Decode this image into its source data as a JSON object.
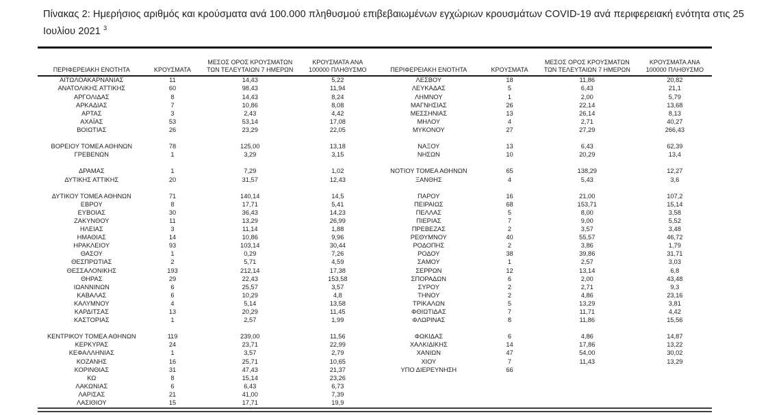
{
  "page": {
    "title": "Πίνακας 2:  Ημερήσιος αριθμός και κρούσματα ανά 100.000 πληθυσμού επιβεβαιωμένων εγχώριων κρουσμάτων COVID-19 ανά περιφερειακή ενότητα στις 25 Ιουλίου 2021",
    "title_footnote": "3"
  },
  "colors": {
    "text": "#1c1c22",
    "rule_top": "#111111",
    "rule_header": "#161616",
    "rule_bottom": "#3c3c3c",
    "background": "#ffffff"
  },
  "table": {
    "headers": [
      "ΠΕΡΙΦΕΡΕΙΑΚΗ ΕΝΟΤΗΤΑ",
      "ΚΡΟΥΣΜΑΤΑ",
      "ΜΕΣΟΣ ΟΡΟΣ ΚΡΟΥΣΜΑΤΩΝ ΤΩΝ ΤΕΛΕΥΤΑΙΩΝ 7 ΗΜΕΡΩΝ",
      "ΚΡΟΥΣΜΑΤΑ ΑΝΑ 100000 ΠΛΗΘΥΣΜΟ"
    ],
    "left_rows": [
      [
        "ΑΙΤΩΛΟΑΚΑΡΝΑΝΙΑΣ",
        "11",
        "14,43",
        "5,22"
      ],
      [
        "ΑΝΑΤΟΛΙΚΗΣ ΑΤΤΙΚΗΣ",
        "60",
        "98,43",
        "11,94"
      ],
      [
        "ΑΡΓΟΛΙΔΑΣ",
        "8",
        "14,43",
        "8,24"
      ],
      [
        "ΑΡΚΑΔΙΑΣ",
        "7",
        "10,86",
        "8,08"
      ],
      [
        "ΑΡΤΑΣ",
        "3",
        "2,43",
        "4,42"
      ],
      [
        "ΑΧΑΪΑΣ",
        "53",
        "53,14",
        "17,08"
      ],
      [
        "ΒΟΙΩΤΙΑΣ",
        "26",
        "23,29",
        "22,05"
      ],
      null,
      [
        "ΒΟΡΕΙΟΥ ΤΟΜΕΑ ΑΘΗΝΩΝ",
        "78",
        "125,00",
        "13,18"
      ],
      [
        "ΓΡΕΒΕΝΩΝ",
        "1",
        "3,29",
        "3,15"
      ],
      null,
      [
        "ΔΡΑΜΑΣ",
        "1",
        "7,29",
        "1,02"
      ],
      [
        "ΔΥΤΙΚΗΣ ΑΤΤΙΚΗΣ",
        "20",
        "31,57",
        "12,43"
      ],
      null,
      [
        "ΔΥΤΙΚΟΥ ΤΟΜΕΑ ΑΘΗΝΩΝ",
        "71",
        "140,14",
        "14,5"
      ],
      [
        "ΕΒΡΟΥ",
        "8",
        "17,71",
        "5,41"
      ],
      [
        "ΕΥΒΟΙΑΣ",
        "30",
        "36,43",
        "14,23"
      ],
      [
        "ΖΑΚΥΝΘΟΥ",
        "11",
        "13,29",
        "26,99"
      ],
      [
        "ΗΛΕΙΑΣ",
        "3",
        "11,14",
        "1,88"
      ],
      [
        "ΗΜΑΘΙΑΣ",
        "14",
        "10,86",
        "9,96"
      ],
      [
        "ΗΡΑΚΛΕΙΟΥ",
        "93",
        "103,14",
        "30,44"
      ],
      [
        "ΘΑΣΟΥ",
        "1",
        "0,29",
        "7,26"
      ],
      [
        "ΘΕΣΠΡΩΤΙΑΣ",
        "2",
        "5,71",
        "4,59"
      ],
      [
        "ΘΕΣΣΑΛΟΝΙΚΗΣ",
        "193",
        "212,14",
        "17,38"
      ],
      [
        "ΘΗΡΑΣ",
        "29",
        "22,43",
        "153,58"
      ],
      [
        "ΙΩΑΝΝΙΝΩΝ",
        "6",
        "25,57",
        "3,57"
      ],
      [
        "ΚΑΒΑΛΑΣ",
        "6",
        "10,29",
        "4,8"
      ],
      [
        "ΚΑΛΥΜΝΟΥ",
        "4",
        "5,14",
        "13,58"
      ],
      [
        "ΚΑΡΔΙΤΣΑΣ",
        "13",
        "20,29",
        "11,45"
      ],
      [
        "ΚΑΣΤΟΡΙΑΣ",
        "1",
        "2,57",
        "1,99"
      ],
      null,
      [
        "ΚΕΝΤΡΙΚΟΥ ΤΟΜΕΑ ΑΘΗΝΩΝ",
        "119",
        "239,00",
        "11,56"
      ],
      [
        "ΚΕΡΚΥΡΑΣ",
        "24",
        "23,71",
        "22,99"
      ],
      [
        "ΚΕΦΑΛΛΗΝΙΑΣ",
        "1",
        "3,57",
        "2,79"
      ],
      [
        "ΚΟΖΑΝΗΣ",
        "16",
        "25,71",
        "10,65"
      ],
      [
        "ΚΟΡΙΝΘΙΑΣ",
        "31",
        "47,43",
        "21,37"
      ],
      [
        "ΚΩ",
        "8",
        "15,14",
        "23,26"
      ],
      [
        "ΛΑΚΩΝΙΑΣ",
        "6",
        "6,43",
        "6,73"
      ],
      [
        "ΛΑΡΙΣΑΣ",
        "21",
        "41,00",
        "7,39"
      ],
      [
        "ΛΑΣΙΘΙΟΥ",
        "15",
        "17,71",
        "19,9"
      ]
    ],
    "right_rows": [
      [
        "ΛΕΣΒΟΥ",
        "18",
        "11,86",
        "20,82"
      ],
      [
        "ΛΕΥΚΑΔΑΣ",
        "5",
        "6,43",
        "21,1"
      ],
      [
        "ΛΗΜΝΟΥ",
        "1",
        "2,00",
        "5,79"
      ],
      [
        "ΜΑΓΝΗΣΙΑΣ",
        "26",
        "22,14",
        "13,68"
      ],
      [
        "ΜΕΣΣΗΝΙΑΣ",
        "13",
        "26,14",
        "8,13"
      ],
      [
        "ΜΗΛΟΥ",
        "4",
        "2,71",
        "40,27"
      ],
      [
        "ΜΥΚΟΝΟΥ",
        "27",
        "27,29",
        "266,43"
      ],
      null,
      [
        "ΝΑΞΟΥ",
        "13",
        "6,43",
        "62,39"
      ],
      [
        "ΝΗΣΩΝ",
        "10",
        "20,29",
        "13,4"
      ],
      null,
      [
        "ΝΟΤΙΟΥ ΤΟΜΕΑ ΑΘΗΝΩΝ",
        "65",
        "138,29",
        "12,27"
      ],
      [
        "ΞΑΝΘΗΣ",
        "4",
        "5,43",
        "3,6"
      ],
      null,
      [
        "ΠΑΡΟΥ",
        "16",
        "21,00",
        "107,2"
      ],
      [
        "ΠΕΙΡΑΙΩΣ",
        "68",
        "153,71",
        "15,14"
      ],
      [
        "ΠΕΛΛΑΣ",
        "5",
        "8,00",
        "3,58"
      ],
      [
        "ΠΙΕΡΙΑΣ",
        "7",
        "9,00",
        "5,52"
      ],
      [
        "ΠΡΕΒΕΖΑΣ",
        "2",
        "3,57",
        "3,48"
      ],
      [
        "ΡΕΘΥΜΝΟΥ",
        "40",
        "55,57",
        "46,72"
      ],
      [
        "ΡΟΔΟΠΗΣ",
        "2",
        "3,86",
        "1,79"
      ],
      [
        "ΡΟΔΟΥ",
        "38",
        "39,86",
        "31,71"
      ],
      [
        "ΣΑΜΟΥ",
        "1",
        "2,57",
        "3,03"
      ],
      [
        "ΣΕΡΡΩΝ",
        "12",
        "13,14",
        "6,8"
      ],
      [
        "ΣΠΟΡΑΔΩΝ",
        "6",
        "2,00",
        "43,48"
      ],
      [
        "ΣΥΡΟΥ",
        "2",
        "2,71",
        "9,3"
      ],
      [
        "ΤΗΝΟΥ",
        "2",
        "4,86",
        "23,16"
      ],
      [
        "ΤΡΙΚΑΛΩΝ",
        "5",
        "13,29",
        "3,81"
      ],
      [
        "ΦΘΙΩΤΙΔΑΣ",
        "7",
        "11,71",
        "4,42"
      ],
      [
        "ΦΛΩΡΙΝΑΣ",
        "8",
        "11,86",
        "15,56"
      ],
      null,
      [
        "ΦΩΚΙΔΑΣ",
        "6",
        "4,86",
        "14,87"
      ],
      [
        "ΧΑΛΚΙΔΙΚΗΣ",
        "14",
        "17,86",
        "13,22"
      ],
      [
        "ΧΑΝΙΩΝ",
        "47",
        "54,00",
        "30,02"
      ],
      [
        "ΧΙΟΥ",
        "7",
        "11,43",
        "13,29"
      ],
      [
        "ΥΠΟ ΔΙΕΡΕΥΝΗΣΗ",
        "66",
        "",
        ""
      ],
      null,
      null,
      null,
      null
    ]
  }
}
